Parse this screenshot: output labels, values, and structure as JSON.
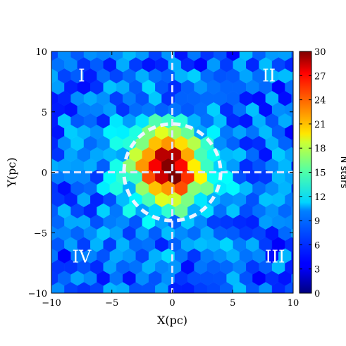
{
  "chart_data": {
    "type": "heatmap",
    "subtype": "hexbin",
    "xlabel": "X(pc)",
    "ylabel": "Y(pc)",
    "xlim": [
      -10,
      10
    ],
    "ylim": [
      -10,
      10
    ],
    "x_ticks": [
      "−10",
      "−5",
      "0",
      "5",
      "10"
    ],
    "y_ticks": [
      "−10",
      "−5",
      "0",
      "5",
      "10"
    ],
    "x_tick_values": [
      -10,
      -5,
      0,
      5,
      10
    ],
    "y_tick_values": [
      -10,
      -5,
      0,
      5,
      10
    ],
    "colorbar": {
      "label": "N stars",
      "range": [
        0,
        30
      ],
      "ticks": [
        "0",
        "3",
        "6",
        "9",
        "12",
        "15",
        "18",
        "21",
        "24",
        "27",
        "30"
      ],
      "tick_values": [
        0,
        3,
        6,
        9,
        12,
        15,
        18,
        21,
        24,
        27,
        30
      ],
      "colormap": "jet"
    },
    "quadrant_labels": [
      {
        "text": "I",
        "x": -7.5,
        "y": 8
      },
      {
        "text": "II",
        "x": 8,
        "y": 8
      },
      {
        "text": "III",
        "x": 8.5,
        "y": -7
      },
      {
        "text": "IV",
        "x": -7.5,
        "y": -7
      }
    ],
    "reference_lines": {
      "x": 0,
      "y": 0,
      "style": "dashed",
      "color": "#dde3ff"
    },
    "circle": {
      "center": [
        0,
        0
      ],
      "radius": 4,
      "style": "dashed",
      "color": "#eef2ff"
    },
    "density_model": {
      "background_mean": 6.5,
      "peak": 28,
      "peak_center": [
        -0.3,
        0.4
      ],
      "core_sigma_pc": 1.8
    },
    "grid": false
  }
}
